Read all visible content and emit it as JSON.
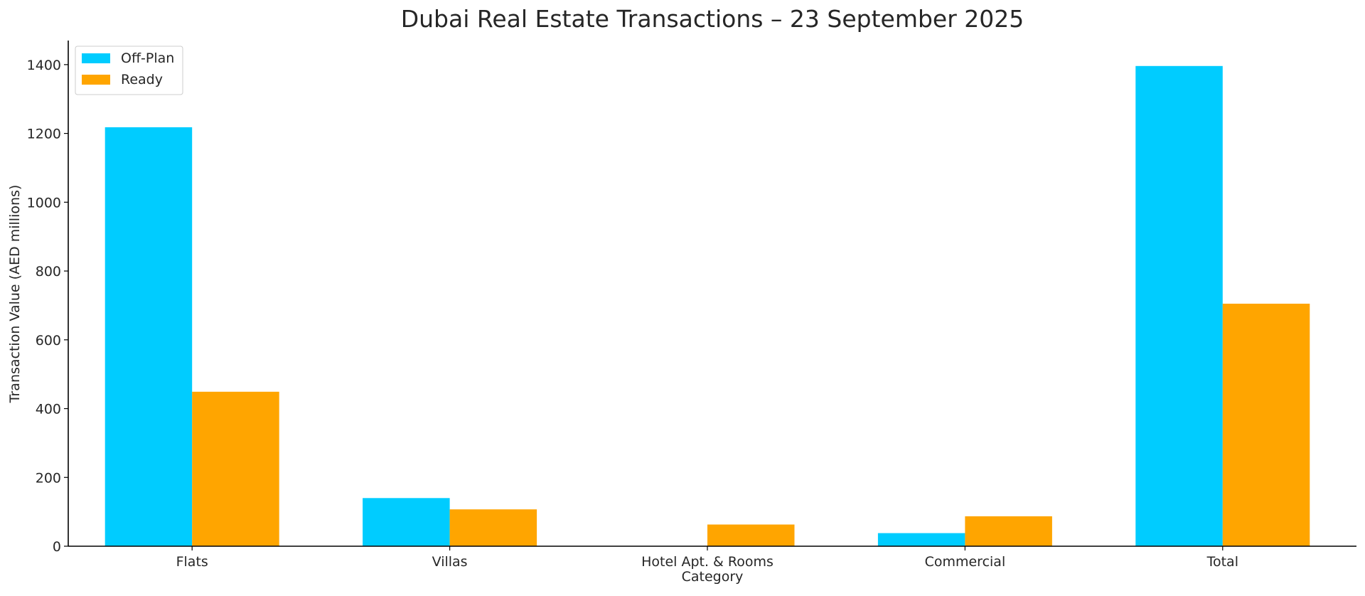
{
  "chart_data": {
    "type": "bar",
    "title": "Dubai Real Estate Transactions – 23 September 2025",
    "xlabel": "Category",
    "ylabel": "Transaction Value (AED millions)",
    "categories": [
      "Flats",
      "Villas",
      "Hotel Apt. & Rooms",
      "Commercial",
      "Total"
    ],
    "series": [
      {
        "name": "Off-Plan",
        "color": "#00CCFF",
        "values": [
          1218,
          140,
          0,
          38,
          1396
        ]
      },
      {
        "name": "Ready",
        "color": "#FFA500",
        "values": [
          449,
          107,
          63,
          87,
          705
        ]
      }
    ],
    "ylim": [
      0,
      1470
    ],
    "yticks": [
      0,
      200,
      400,
      600,
      800,
      1000,
      1200,
      1400
    ],
    "grid": false,
    "legend_position": "top-left"
  }
}
